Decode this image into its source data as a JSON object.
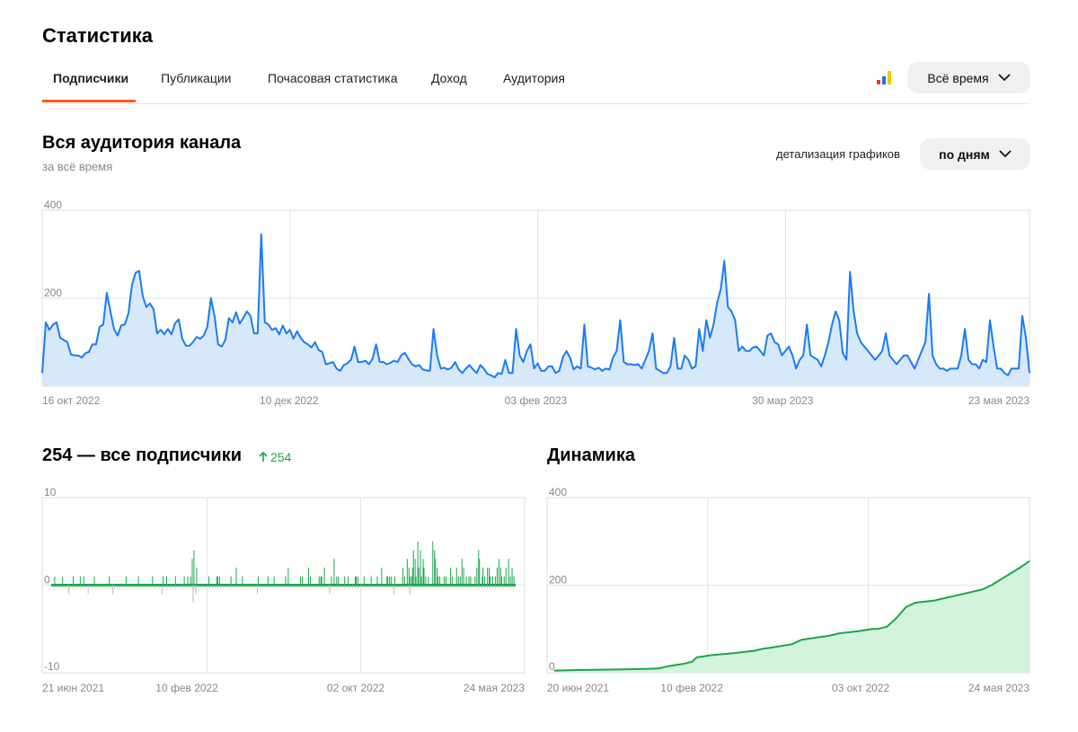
{
  "header": {
    "title": "Статистика"
  },
  "tabs": [
    {
      "label": "Подписчики",
      "active": true
    },
    {
      "label": "Публикации",
      "active": false
    },
    {
      "label": "Почасовая статистика",
      "active": false
    },
    {
      "label": "Доход",
      "active": false
    },
    {
      "label": "Аудитория",
      "active": false
    }
  ],
  "period_select": {
    "label": "Всё время",
    "icon": "chevron-down-icon"
  },
  "stats_icon": {
    "icon": "bar-chart-icon",
    "colors": [
      "#e53935",
      "#1e6fe8",
      "#f5c400"
    ]
  },
  "audience": {
    "title": "Вся аудитория канала",
    "subtitle": "за всё время",
    "detail_label": "детализация графиков",
    "detail_button": "по дням"
  },
  "subscribers": {
    "title": "254 — все подписчики",
    "delta": "254",
    "delta_icon": "arrow-up-icon"
  },
  "dynamics": {
    "title": "Динамика"
  },
  "chart_data": [
    {
      "type": "area",
      "id": "audience",
      "color": "#1a7cf2",
      "fill": "#d8e8fb",
      "ylim": [
        0,
        400
      ],
      "yticks": [
        "400",
        "200",
        "0"
      ],
      "xticks": [
        "16 окт 2022",
        "10 дек 2022",
        "03 фев 2023",
        "30 мар 2023",
        "23 мая 2023"
      ],
      "grid": true,
      "values": [
        30,
        145,
        128,
        140,
        145,
        110,
        105,
        100,
        72,
        70,
        70,
        65,
        75,
        78,
        95,
        95,
        135,
        140,
        212,
        170,
        130,
        115,
        138,
        140,
        165,
        230,
        258,
        262,
        205,
        180,
        188,
        175,
        120,
        128,
        118,
        130,
        118,
        143,
        152,
        108,
        92,
        92,
        100,
        112,
        108,
        115,
        135,
        200,
        160,
        95,
        90,
        105,
        155,
        145,
        168,
        142,
        155,
        170,
        160,
        120,
        120,
        345,
        145,
        140,
        128,
        132,
        118,
        138,
        120,
        128,
        108,
        125,
        110,
        100,
        95,
        88,
        100,
        82,
        78,
        50,
        52,
        55,
        40,
        35,
        48,
        52,
        60,
        90,
        55,
        55,
        58,
        50,
        62,
        95,
        55,
        55,
        50,
        53,
        58,
        55,
        70,
        76,
        62,
        50,
        45,
        48,
        38,
        36,
        35,
        130,
        70,
        40,
        42,
        38,
        42,
        55,
        38,
        30,
        40,
        48,
        38,
        30,
        48,
        40,
        28,
        25,
        20,
        30,
        28,
        60,
        30,
        30,
        130,
        70,
        55,
        80,
        95,
        40,
        52,
        35,
        35,
        45,
        45,
        30,
        35,
        65,
        80,
        65,
        38,
        45,
        40,
        140,
        45,
        42,
        38,
        42,
        35,
        40,
        38,
        65,
        80,
        150,
        55,
        50,
        50,
        48,
        50,
        40,
        60,
        80,
        120,
        40,
        35,
        30,
        30,
        45,
        110,
        40,
        40,
        70,
        60,
        40,
        45,
        130,
        80,
        150,
        110,
        140,
        190,
        220,
        285,
        180,
        170,
        150,
        80,
        90,
        80,
        80,
        88,
        90,
        80,
        70,
        115,
        120,
        100,
        95,
        70,
        80,
        90,
        70,
        40,
        60,
        70,
        140,
        70,
        65,
        60,
        45,
        70,
        100,
        140,
        170,
        150,
        75,
        60,
        260,
        170,
        120,
        100,
        90,
        80,
        70,
        60,
        70,
        80,
        120,
        70,
        60,
        50,
        60,
        70,
        70,
        55,
        40,
        60,
        80,
        100,
        210,
        70,
        50,
        40,
        40,
        35,
        40,
        40,
        40,
        70,
        130,
        60,
        50,
        50,
        40,
        60,
        55,
        150,
        90,
        40,
        40,
        30,
        25,
        40,
        40,
        40,
        160,
        110,
        30
      ]
    },
    {
      "type": "bar",
      "id": "daily",
      "color": "#1aa64b",
      "ylim": [
        -10,
        10
      ],
      "yticks": [
        "10",
        "0",
        "-10"
      ],
      "xticks": [
        "21 июн 2021",
        "10 фев 2022",
        "02 окт 2022",
        "24 мая 2023"
      ],
      "grid": true,
      "values": [
        0,
        0,
        0,
        0,
        1,
        0,
        0,
        0,
        0,
        0,
        0,
        0,
        0,
        1,
        0,
        0,
        0,
        0,
        0,
        0,
        0,
        0,
        0,
        0,
        0,
        1,
        0,
        0,
        0,
        0,
        0,
        0,
        0,
        1,
        0,
        0,
        0,
        1,
        0,
        0,
        0,
        0,
        0,
        0,
        0,
        0,
        0,
        0,
        0,
        1,
        0,
        0,
        0,
        0,
        0,
        0,
        0,
        0,
        0,
        0,
        0,
        0,
        0,
        0,
        0,
        0,
        1,
        0,
        0,
        0,
        0,
        0,
        0,
        0,
        0,
        0,
        0,
        0,
        0,
        0,
        0,
        0,
        0,
        0,
        0,
        1,
        0,
        0,
        0,
        0,
        0,
        0,
        0,
        0,
        0,
        0,
        0,
        0,
        0,
        1,
        0,
        0,
        0,
        0,
        0,
        0,
        0,
        0,
        0,
        0,
        0,
        0,
        0,
        0,
        0,
        1,
        0,
        0,
        0,
        0,
        0,
        0,
        0,
        0,
        0,
        0,
        0,
        1,
        0,
        0,
        0,
        1,
        0,
        0,
        0,
        0,
        0,
        0,
        0,
        0,
        0,
        1,
        0,
        0,
        0,
        0,
        0,
        0,
        0,
        0,
        0,
        1,
        0,
        0,
        0,
        1,
        0,
        0,
        1,
        0,
        3,
        0,
        4,
        0,
        0,
        2,
        0,
        0,
        0,
        0,
        0,
        0,
        0,
        0,
        0,
        0,
        0,
        0,
        0,
        1,
        0,
        0,
        0,
        0,
        0,
        0,
        0,
        0,
        1,
        1,
        0,
        1,
        0,
        0,
        0,
        0,
        0,
        0,
        0,
        0,
        0,
        0,
        0,
        0,
        1,
        0,
        0,
        0,
        0,
        0,
        2,
        0,
        0,
        0,
        0,
        0,
        0,
        1,
        0,
        0,
        0,
        0,
        0,
        0,
        0,
        0,
        0,
        0,
        0,
        0,
        0,
        0,
        0,
        0,
        0,
        1,
        0,
        0,
        0,
        0,
        0,
        0,
        0,
        0,
        0,
        0,
        1,
        0,
        0,
        0,
        0,
        0,
        0,
        1,
        0,
        0,
        0,
        0,
        0,
        0,
        0,
        0,
        0,
        0,
        0,
        0,
        1,
        0,
        0,
        2,
        0,
        0,
        0,
        0,
        0,
        0,
        0,
        0,
        0,
        0,
        0,
        0,
        0,
        1,
        0,
        1,
        0,
        0,
        0,
        0,
        0,
        0,
        2,
        0,
        1,
        0,
        0,
        0,
        0,
        0,
        0,
        0,
        0,
        0,
        1,
        0,
        1,
        1,
        0,
        0,
        2,
        0,
        0,
        0,
        0,
        0,
        0,
        0,
        1,
        0,
        0,
        3,
        0,
        0,
        1,
        0,
        1,
        0,
        0,
        0,
        0,
        0,
        0,
        1,
        0,
        0,
        0,
        1,
        0,
        0,
        0,
        0,
        0,
        0,
        0,
        1,
        1,
        0,
        1,
        0,
        0,
        0,
        0,
        0,
        0,
        1,
        0,
        0,
        0,
        0,
        0,
        0,
        0,
        1,
        0,
        0,
        0,
        0,
        0,
        0,
        1,
        0,
        0,
        0,
        0,
        2,
        0,
        0,
        0,
        0,
        0,
        1,
        1,
        0,
        1,
        0,
        1,
        0,
        0,
        0,
        1,
        0,
        0,
        0,
        0,
        0,
        0,
        0,
        0,
        2,
        0,
        1,
        0,
        0,
        3,
        0,
        2,
        1,
        0,
        1,
        2,
        4,
        0,
        3,
        1,
        0,
        5,
        2,
        0,
        4,
        1,
        0,
        3,
        2,
        0,
        1,
        0,
        0,
        1,
        0,
        0,
        0,
        0,
        5,
        0,
        4,
        3,
        0,
        2,
        1,
        0,
        1,
        0,
        0,
        0,
        0,
        1,
        0,
        1,
        0,
        0,
        0,
        0,
        2,
        0,
        1,
        0,
        0,
        0,
        0,
        2,
        0,
        1,
        0,
        1,
        0,
        3,
        0,
        2,
        0,
        0,
        1,
        0,
        0,
        1,
        0,
        1,
        0,
        0,
        0,
        0,
        1,
        0,
        2,
        0,
        4,
        3,
        0,
        0,
        1,
        2,
        0,
        1,
        0,
        0,
        2,
        0,
        2,
        1,
        0,
        0,
        1,
        0,
        0,
        1,
        0,
        2,
        0,
        3,
        0,
        2,
        1,
        0,
        0,
        1,
        0,
        2,
        0,
        0,
        3,
        0,
        1,
        0,
        2,
        0,
        1,
        0,
        0
      ],
      "negatives": [
        0,
        0,
        0,
        0,
        0,
        0,
        0,
        0,
        0,
        0,
        0,
        0,
        0,
        0,
        0,
        0,
        0,
        0,
        0,
        0,
        1,
        0,
        0,
        0,
        0,
        0,
        0,
        0,
        0,
        0,
        0,
        0,
        0,
        0,
        0,
        0,
        0,
        0,
        0,
        0,
        0,
        0,
        1,
        0,
        0,
        0,
        0,
        0,
        0,
        0,
        0,
        0,
        0,
        0,
        0,
        0,
        0,
        0,
        0,
        0,
        0,
        0,
        0,
        0,
        0,
        0,
        0,
        0,
        0,
        0,
        1,
        0,
        0,
        0,
        0,
        0,
        0,
        0,
        0,
        0,
        0,
        0,
        0,
        0,
        0,
        0,
        0,
        0,
        0,
        0,
        0,
        0,
        0,
        0,
        0,
        0,
        0,
        0,
        0,
        0,
        0,
        0,
        0,
        0,
        0,
        0,
        0,
        0,
        0,
        0,
        0,
        0,
        0,
        0,
        0,
        0,
        0,
        0,
        0,
        0,
        0,
        0,
        0,
        0,
        0,
        0,
        1,
        0,
        0,
        0,
        0,
        0,
        0,
        0,
        0,
        0,
        0,
        0,
        0,
        0,
        0,
        0,
        0,
        0,
        0,
        0,
        0,
        0,
        0,
        0,
        0,
        0,
        0,
        0,
        0,
        0,
        0,
        0,
        0,
        0,
        0,
        2,
        0,
        0,
        1,
        0,
        0,
        0,
        0,
        0,
        0,
        0,
        0,
        0,
        0,
        0,
        0,
        0,
        0,
        0,
        0,
        0,
        0,
        0,
        0,
        0,
        0,
        0,
        0,
        0,
        0,
        0,
        0,
        0,
        0,
        0,
        0,
        0,
        0,
        0,
        0,
        0,
        0,
        0,
        0,
        0,
        0,
        0,
        0,
        0,
        0,
        0,
        0,
        0,
        0,
        0,
        0,
        0,
        0,
        0,
        0,
        0,
        0,
        0,
        0,
        0,
        0,
        0,
        0,
        0,
        0,
        0,
        0,
        0,
        1,
        0,
        0,
        0,
        0,
        0,
        0,
        0,
        0,
        0,
        0,
        0,
        0,
        0,
        0,
        0,
        0,
        0,
        0,
        0,
        0,
        0,
        0,
        0,
        0,
        0,
        0,
        0,
        0,
        0,
        0,
        0,
        0,
        0,
        0,
        0,
        0,
        0,
        0,
        0,
        0,
        0,
        0,
        0,
        0,
        0,
        0,
        0,
        0,
        0,
        0,
        0,
        0,
        0,
        0,
        0,
        0,
        0,
        0,
        0,
        0,
        0,
        0,
        0,
        0,
        0,
        0,
        0,
        0,
        0,
        0,
        0,
        0,
        0,
        0,
        0,
        0,
        0,
        0,
        0,
        0,
        0,
        1,
        0,
        0,
        0,
        0,
        0,
        0,
        0,
        0,
        0,
        0,
        0,
        0,
        0,
        0,
        0,
        0,
        0,
        0,
        0,
        0,
        0,
        0,
        0,
        0,
        0,
        0,
        0,
        0,
        0,
        0,
        0,
        0,
        0,
        0,
        0,
        0,
        0,
        0,
        0,
        0,
        0,
        0,
        0,
        0,
        0,
        0,
        0,
        0,
        0,
        0,
        0,
        0,
        0,
        0,
        0,
        0,
        0,
        0,
        0,
        0,
        0,
        0,
        0,
        0,
        0,
        0,
        0,
        0,
        0,
        0,
        0,
        0,
        1,
        0,
        0,
        0,
        0,
        0,
        0,
        0,
        0,
        0,
        0,
        0,
        0,
        0,
        0,
        0,
        0,
        0,
        1,
        0,
        0,
        0,
        0,
        0,
        0,
        0,
        0,
        0,
        0,
        0,
        0,
        0,
        0,
        0,
        0,
        0,
        0,
        0,
        0,
        0,
        0,
        0,
        0,
        0,
        0,
        0,
        0,
        0,
        0,
        0,
        0,
        0,
        0,
        0,
        0,
        0,
        0,
        0,
        0,
        0,
        0,
        0,
        0,
        0,
        0,
        0,
        0,
        0,
        0,
        0,
        0,
        0,
        0,
        0,
        0,
        0,
        0,
        0,
        0,
        0,
        0,
        0,
        0,
        0,
        0,
        0,
        0,
        0,
        0,
        0,
        0,
        0,
        0,
        0,
        0,
        0,
        0,
        0,
        0,
        0,
        0,
        0,
        0,
        0,
        0,
        0,
        0,
        0,
        0,
        0,
        0,
        0,
        0,
        0,
        0,
        0,
        0,
        0,
        0,
        0,
        0,
        0,
        0,
        0,
        0,
        0,
        0,
        0,
        0,
        0,
        0,
        0,
        0,
        0,
        0,
        0,
        0,
        0,
        0,
        0,
        0,
        0,
        0,
        0,
        0,
        0,
        0,
        0,
        0,
        0,
        0,
        0,
        0,
        0,
        0,
        0
      ]
    },
    {
      "type": "area",
      "id": "dynamics",
      "color": "#1aa64b",
      "fill": "#d4f3dc",
      "ylim": [
        0,
        400
      ],
      "yticks": [
        "400",
        "200",
        "0"
      ],
      "xticks": [
        "20 июн 2021",
        "10 фев 2022",
        "03 окт 2022",
        "24 мая 2023"
      ],
      "grid": true,
      "x": [
        0,
        0.04,
        0.1,
        0.16,
        0.2,
        0.22,
        0.24,
        0.27,
        0.29,
        0.3,
        0.33,
        0.35,
        0.38,
        0.42,
        0.44,
        0.46,
        0.5,
        0.52,
        0.55,
        0.58,
        0.6,
        0.64,
        0.67,
        0.68,
        0.7,
        0.72,
        0.74,
        0.76,
        0.8,
        0.84,
        0.86,
        0.9,
        0.92,
        0.95,
        0.98,
        1.0
      ],
      "values": [
        5,
        6,
        7,
        8,
        9,
        10,
        15,
        20,
        25,
        35,
        40,
        42,
        45,
        50,
        55,
        58,
        65,
        75,
        80,
        85,
        90,
        95,
        100,
        100,
        105,
        125,
        150,
        160,
        165,
        175,
        180,
        190,
        200,
        220,
        240,
        255
      ]
    }
  ]
}
